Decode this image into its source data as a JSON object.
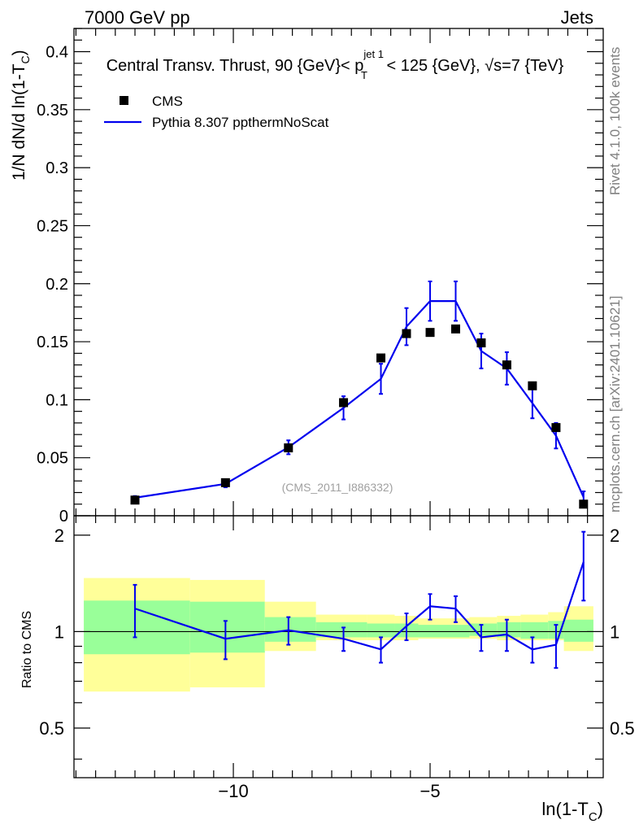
{
  "header": {
    "left": "7000 GeV pp",
    "right": "Jets"
  },
  "side_labels": {
    "rivet": "Rivet 4.1.0, 100k events",
    "mcplots": "mcplots.cern.ch [arXiv:2401.10621]"
  },
  "chart_data": {
    "type": "line",
    "title_parts": {
      "prefix": "Central Transv. Thrust, 90 {GeV}< p",
      "sub": "T",
      "sup": "jet 1",
      "suffix": " < 125 {GeV}, √s=7 {TeV}"
    },
    "watermark": "(CMS_2011_I886332)",
    "xlabel": {
      "main": "ln(1-T",
      "sub": "C",
      "close": ")"
    },
    "ylabel": {
      "main": "1/N    dN/d ln(1-T",
      "sub": "C",
      "close": ")"
    },
    "ratio_ylabel": "Ratio to CMS",
    "main_ylim": [
      0,
      0.42
    ],
    "main_yticks": [
      0,
      0.05,
      0.1,
      0.15,
      0.2,
      0.25,
      0.3,
      0.35,
      0.4
    ],
    "main_ytick_labels": [
      "0",
      "0.05",
      "0.1",
      "0.15",
      "0.2",
      "0.25",
      "0.3",
      "0.35",
      "0.4"
    ],
    "xlim": [
      -14.05,
      -0.6
    ],
    "xticks": [
      -10,
      -5
    ],
    "xtick_labels": [
      "−10",
      "−5"
    ],
    "ratio_ylim": [
      0.35,
      2.3
    ],
    "ratio_yticks": [
      0.5,
      1,
      2
    ],
    "ratio_ytick_labels": [
      "0.5",
      "1",
      "2"
    ],
    "legend": [
      {
        "name": "CMS",
        "marker": "square",
        "color": "#000000"
      },
      {
        "name": "Pythia 8.307 ppthermNoScat",
        "marker": "line",
        "color": "#0000ee"
      }
    ],
    "series": [
      {
        "name": "CMS",
        "x": [
          -12.5,
          -10.2,
          -8.6,
          -7.2,
          -6.25,
          -5.6,
          -5.0,
          -4.35,
          -3.7,
          -3.05,
          -2.4,
          -1.8,
          -1.1
        ],
        "y": [
          0.0135,
          0.0285,
          0.0585,
          0.0975,
          0.136,
          0.157,
          0.158,
          0.161,
          0.149,
          0.13,
          0.112,
          0.076,
          0.01
        ]
      },
      {
        "name": "Pythia 8.307 ppthermNoScat",
        "x": [
          -12.5,
          -10.2,
          -8.6,
          -7.2,
          -6.25,
          -5.6,
          -5.0,
          -4.35,
          -3.7,
          -3.05,
          -2.4,
          -1.8,
          -1.1
        ],
        "y": [
          0.0155,
          0.0275,
          0.059,
          0.093,
          0.118,
          0.163,
          0.185,
          0.185,
          0.142,
          0.127,
          0.097,
          0.069,
          0.016
        ],
        "yerr": [
          0.0015,
          0.003,
          0.006,
          0.01,
          0.013,
          0.016,
          0.017,
          0.017,
          0.015,
          0.014,
          0.013,
          0.011,
          0.005
        ]
      }
    ],
    "ratio": {
      "x": [
        -12.5,
        -10.2,
        -8.6,
        -7.2,
        -6.25,
        -5.6,
        -5.0,
        -4.35,
        -3.7,
        -3.05,
        -2.4,
        -1.8,
        -1.1
      ],
      "y": [
        1.18,
        0.95,
        1.01,
        0.95,
        0.88,
        1.04,
        1.2,
        1.18,
        0.96,
        0.98,
        0.88,
        0.91,
        1.65
      ],
      "yerr": [
        0.22,
        0.13,
        0.1,
        0.08,
        0.08,
        0.1,
        0.11,
        0.11,
        0.09,
        0.11,
        0.08,
        0.14,
        0.4
      ]
    },
    "bands": [
      {
        "x1": -13.8,
        "x2": -11.1,
        "y1_lo": 0.85,
        "y1_hi": 1.25,
        "y2_lo": 0.65,
        "y2_hi": 1.47
      },
      {
        "x1": -11.1,
        "x2": -9.2,
        "y1_lo": 0.86,
        "y1_hi": 1.24,
        "y2_lo": 0.67,
        "y2_hi": 1.45
      },
      {
        "x1": -9.2,
        "x2": -7.9,
        "y1_lo": 0.93,
        "y1_hi": 1.11,
        "y2_lo": 0.87,
        "y2_hi": 1.24
      },
      {
        "x1": -7.9,
        "x2": -6.6,
        "y1_lo": 0.96,
        "y1_hi": 1.07,
        "y2_lo": 0.94,
        "y2_hi": 1.13
      },
      {
        "x1": -6.6,
        "x2": -5.9,
        "y1_lo": 0.96,
        "y1_hi": 1.06,
        "y2_lo": 0.94,
        "y2_hi": 1.13
      },
      {
        "x1": -5.9,
        "x2": -5.3,
        "y1_lo": 0.96,
        "y1_hi": 1.06,
        "y2_lo": 0.94,
        "y2_hi": 1.12
      },
      {
        "x1": -5.3,
        "x2": -4.0,
        "y1_lo": 0.96,
        "y1_hi": 1.05,
        "y2_lo": 0.95,
        "y2_hi": 1.1
      },
      {
        "x1": -4.0,
        "x2": -3.3,
        "y1_lo": 0.97,
        "y1_hi": 1.06,
        "y2_lo": 0.95,
        "y2_hi": 1.11
      },
      {
        "x1": -3.3,
        "x2": -2.7,
        "y1_lo": 0.96,
        "y1_hi": 1.07,
        "y2_lo": 0.94,
        "y2_hi": 1.12
      },
      {
        "x1": -2.7,
        "x2": -2.0,
        "y1_lo": 0.95,
        "y1_hi": 1.07,
        "y2_lo": 0.94,
        "y2_hi": 1.13
      },
      {
        "x1": -2.0,
        "x2": -1.6,
        "y1_lo": 0.95,
        "y1_hi": 1.08,
        "y2_lo": 0.94,
        "y2_hi": 1.15
      },
      {
        "x1": -1.6,
        "x2": -0.85,
        "y1_lo": 0.93,
        "y1_hi": 1.09,
        "y2_lo": 0.87,
        "y2_hi": 1.2
      }
    ],
    "colors": {
      "data": "#000000",
      "mc": "#0000ee",
      "band_inner": "#99ff99",
      "band_outer": "#ffff99"
    }
  }
}
